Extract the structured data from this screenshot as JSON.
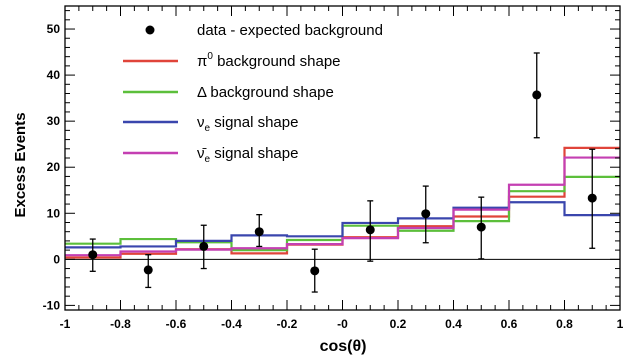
{
  "chart_data": {
    "type": "line",
    "xlabel": "cos(θ)",
    "ylabel": "Excess Events",
    "xlim": [
      -1,
      1
    ],
    "ylim": [
      -11,
      55
    ],
    "grid": false,
    "legend_position": "top-left",
    "bin_edges": [
      -1,
      -0.8,
      -0.6,
      -0.4,
      -0.2,
      0,
      0.2,
      0.4,
      0.6,
      0.8,
      1
    ],
    "x_ticks": [
      {
        "value": -1,
        "label": "-1"
      },
      {
        "value": -0.8,
        "label": "-0.8"
      },
      {
        "value": -0.6,
        "label": "-0.6"
      },
      {
        "value": -0.4,
        "label": "-0.4"
      },
      {
        "value": -0.2,
        "label": "-0.2"
      },
      {
        "value": 0,
        "label": "-0"
      },
      {
        "value": 0.2,
        "label": "0.2"
      },
      {
        "value": 0.4,
        "label": "0.4"
      },
      {
        "value": 0.6,
        "label": "0.6"
      },
      {
        "value": 0.8,
        "label": "0.8"
      },
      {
        "value": 1,
        "label": "1"
      }
    ],
    "y_ticks": [
      {
        "value": -10,
        "label": "-10"
      },
      {
        "value": 0,
        "label": "0"
      },
      {
        "value": 10,
        "label": "10"
      },
      {
        "value": 20,
        "label": "20"
      },
      {
        "value": 30,
        "label": "30"
      },
      {
        "value": 40,
        "label": "40"
      },
      {
        "value": 50,
        "label": "50"
      }
    ],
    "data_points": {
      "label": "data - expected background",
      "color": "#000000",
      "x": [
        -0.9,
        -0.7,
        -0.5,
        -0.3,
        -0.1,
        0.1,
        0.3,
        0.5,
        0.7,
        0.9
      ],
      "y": [
        1.0,
        -2.3,
        2.8,
        6.0,
        -2.5,
        6.4,
        9.9,
        7.0,
        35.7,
        13.3
      ],
      "err_low": [
        3.6,
        3.8,
        4.8,
        3.2,
        4.6,
        6.8,
        6.3,
        6.9,
        9.3,
        10.9
      ],
      "err_high": [
        3.4,
        3.3,
        4.6,
        3.7,
        4.7,
        6.3,
        6.0,
        6.5,
        9.1,
        10.6
      ]
    },
    "series": [
      {
        "name": "π⁰ background shape",
        "label_main": "π",
        "label_sup": "0",
        "label_rest": " background shape",
        "label_sub": "",
        "color": "#e0443a",
        "values": [
          0.4,
          1.2,
          2.2,
          1.3,
          3.2,
          4.8,
          7.2,
          9.3,
          13.6,
          24.2
        ]
      },
      {
        "name": "Δ background shape",
        "label_main": "Δ background shape",
        "label_sup": "",
        "label_rest": "",
        "label_sub": "",
        "color": "#5cbf3b",
        "values": [
          3.4,
          4.4,
          3.7,
          2.0,
          4.2,
          7.3,
          6.2,
          8.3,
          14.8,
          17.9
        ]
      },
      {
        "name": "νe signal shape",
        "label_main": "ν",
        "label_sup": "",
        "label_rest": " signal shape",
        "label_sub": "e",
        "color": "#3a46ad",
        "values": [
          2.6,
          2.8,
          4.0,
          5.2,
          5.0,
          7.9,
          8.9,
          11.2,
          12.4,
          9.6
        ]
      },
      {
        "name": "ν̄e signal shape",
        "label_main": "ν̄",
        "label_sup": "",
        "label_rest": " signal shape",
        "label_sub": "e",
        "color": "#c43fb2",
        "values": [
          0.9,
          1.7,
          2.1,
          2.4,
          3.3,
          4.6,
          6.8,
          10.8,
          16.2,
          22.1
        ]
      }
    ]
  }
}
